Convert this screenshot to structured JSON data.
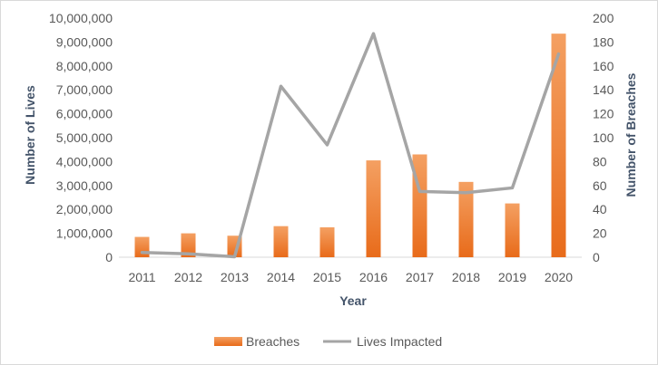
{
  "chart_data": {
    "type": "bar",
    "categories": [
      "2011",
      "2012",
      "2013",
      "2014",
      "2015",
      "2016",
      "2017",
      "2018",
      "2019",
      "2020"
    ],
    "xlabel": "Year",
    "ylabel_left": "Number of Lives",
    "ylabel_right": "Number of Breaches",
    "ylim_left": [
      0,
      10000000
    ],
    "ylim_right": [
      0,
      200
    ],
    "yticks_left": [
      "0",
      "1,000,000",
      "2,000,000",
      "3,000,000",
      "4,000,000",
      "5,000,000",
      "6,000,000",
      "7,000,000",
      "8,000,000",
      "9,000,000",
      "10,000,000"
    ],
    "yticks_right": [
      "0",
      "20",
      "40",
      "60",
      "80",
      "100",
      "120",
      "140",
      "160",
      "180",
      "200"
    ],
    "grid": false,
    "legend_position": "bottom",
    "series": [
      {
        "name": "Breaches",
        "type": "bar",
        "axis": "right",
        "color": "#ed7d31",
        "values": [
          17,
          20,
          18,
          26,
          25,
          81,
          86,
          63,
          45,
          187
        ]
      },
      {
        "name": "Lives Impacted",
        "type": "line",
        "axis": "left",
        "color": "#a5a5a5",
        "values": [
          200000,
          140000,
          20000,
          7150000,
          4700000,
          9350000,
          2750000,
          2700000,
          2900000,
          8500000
        ]
      }
    ]
  }
}
